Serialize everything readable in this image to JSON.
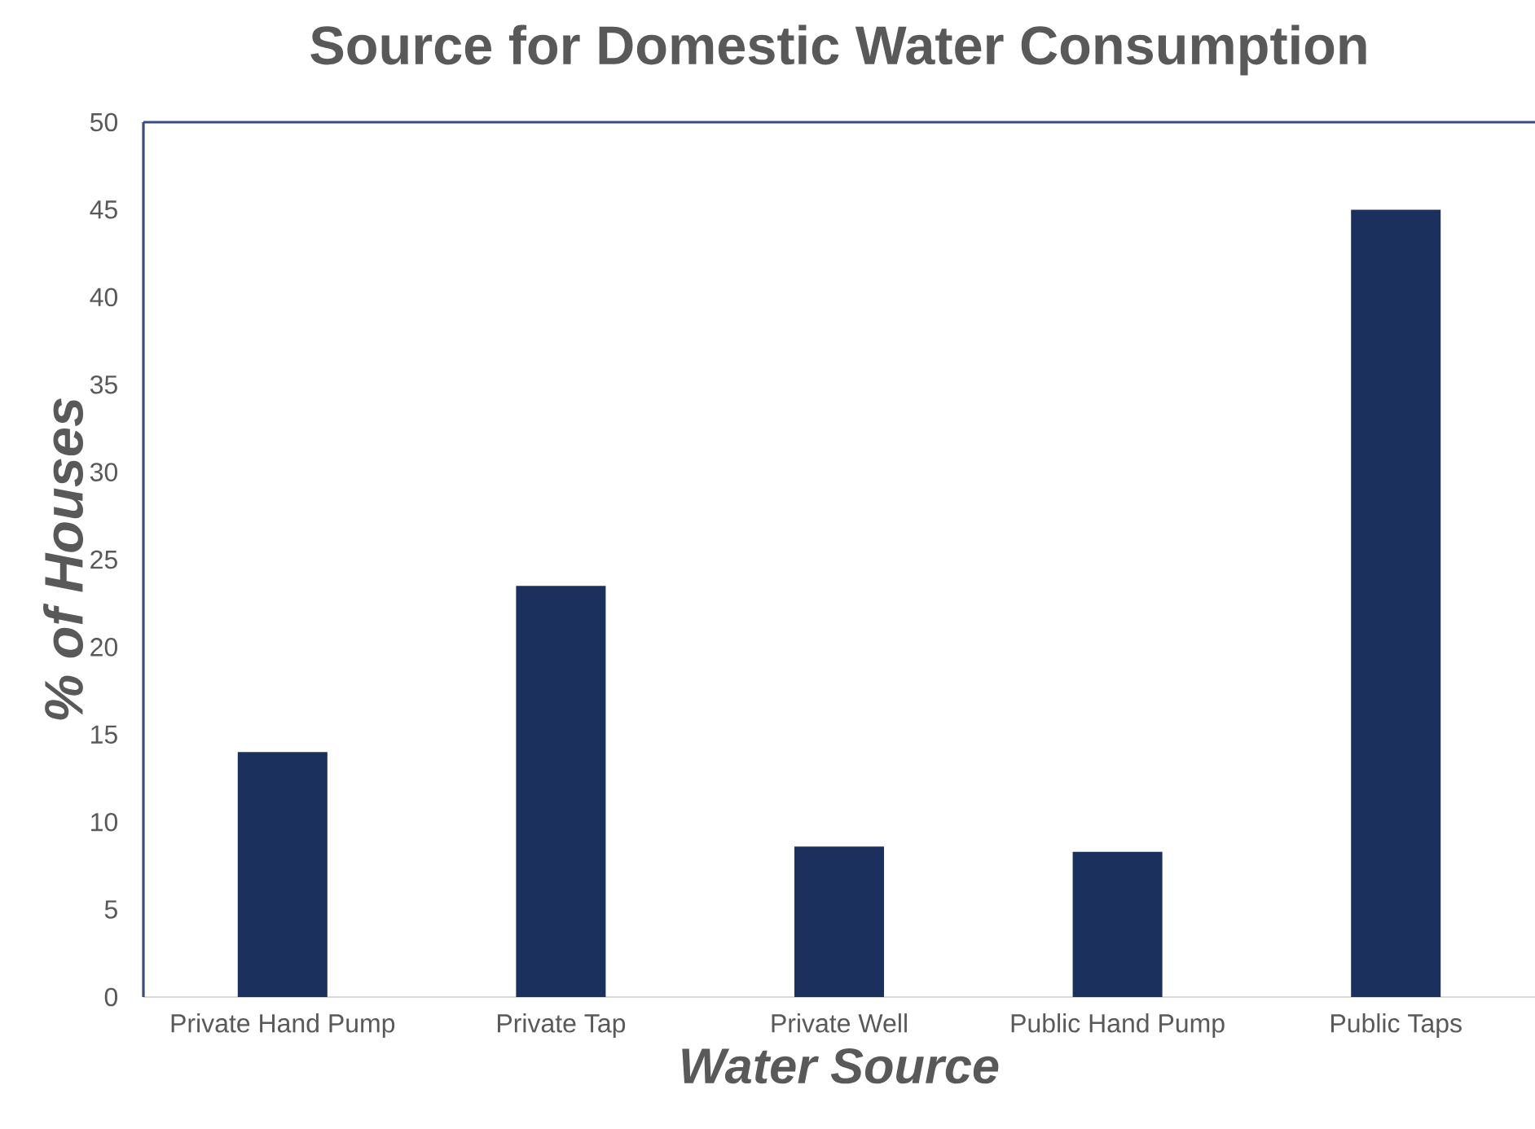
{
  "chart_data": {
    "type": "bar",
    "title": "Source for Domestic Water Consumption",
    "xlabel": "Water Source",
    "ylabel": "% of Houses",
    "categories": [
      "Private Hand Pump",
      "Private Tap",
      "Private Well",
      "Public Hand Pump",
      "Public Taps"
    ],
    "values": [
      14,
      23.5,
      8.6,
      8.3,
      45
    ],
    "color": "#1b305c",
    "ylim": [
      0,
      50
    ],
    "yticks": [
      0,
      5,
      10,
      15,
      20,
      25,
      30,
      35,
      40,
      45,
      50
    ]
  }
}
